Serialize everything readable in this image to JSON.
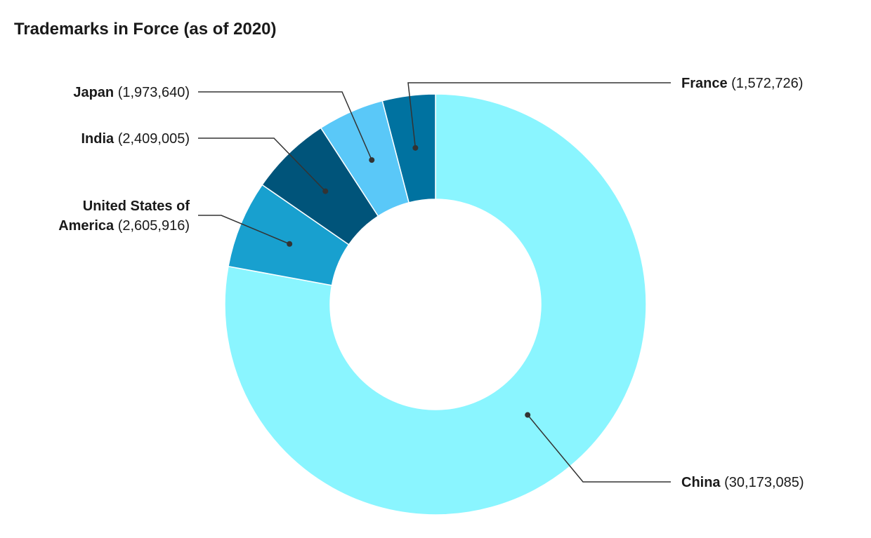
{
  "chart_data": {
    "type": "pie",
    "title": "Trademarks in Force (as of 2020)",
    "donut": true,
    "slices": [
      {
        "label": "China",
        "value": 30173085,
        "value_text": "(30,173,085)",
        "color": "#8af5ff"
      },
      {
        "label": "United States of America",
        "label_lines": [
          "United States of",
          "America"
        ],
        "value": 2605916,
        "value_text": "(2,605,916)",
        "color": "#18a0cf"
      },
      {
        "label": "India",
        "value": 2409005,
        "value_text": "(2,409,005)",
        "color": "#00547a"
      },
      {
        "label": "Japan",
        "value": 1973640,
        "value_text": "(1,973,640)",
        "color": "#5ac8f8"
      },
      {
        "label": "France",
        "value": 1572726,
        "value_text": "(1,572,726)",
        "color": "#0072a0"
      }
    ],
    "legend": "none"
  }
}
